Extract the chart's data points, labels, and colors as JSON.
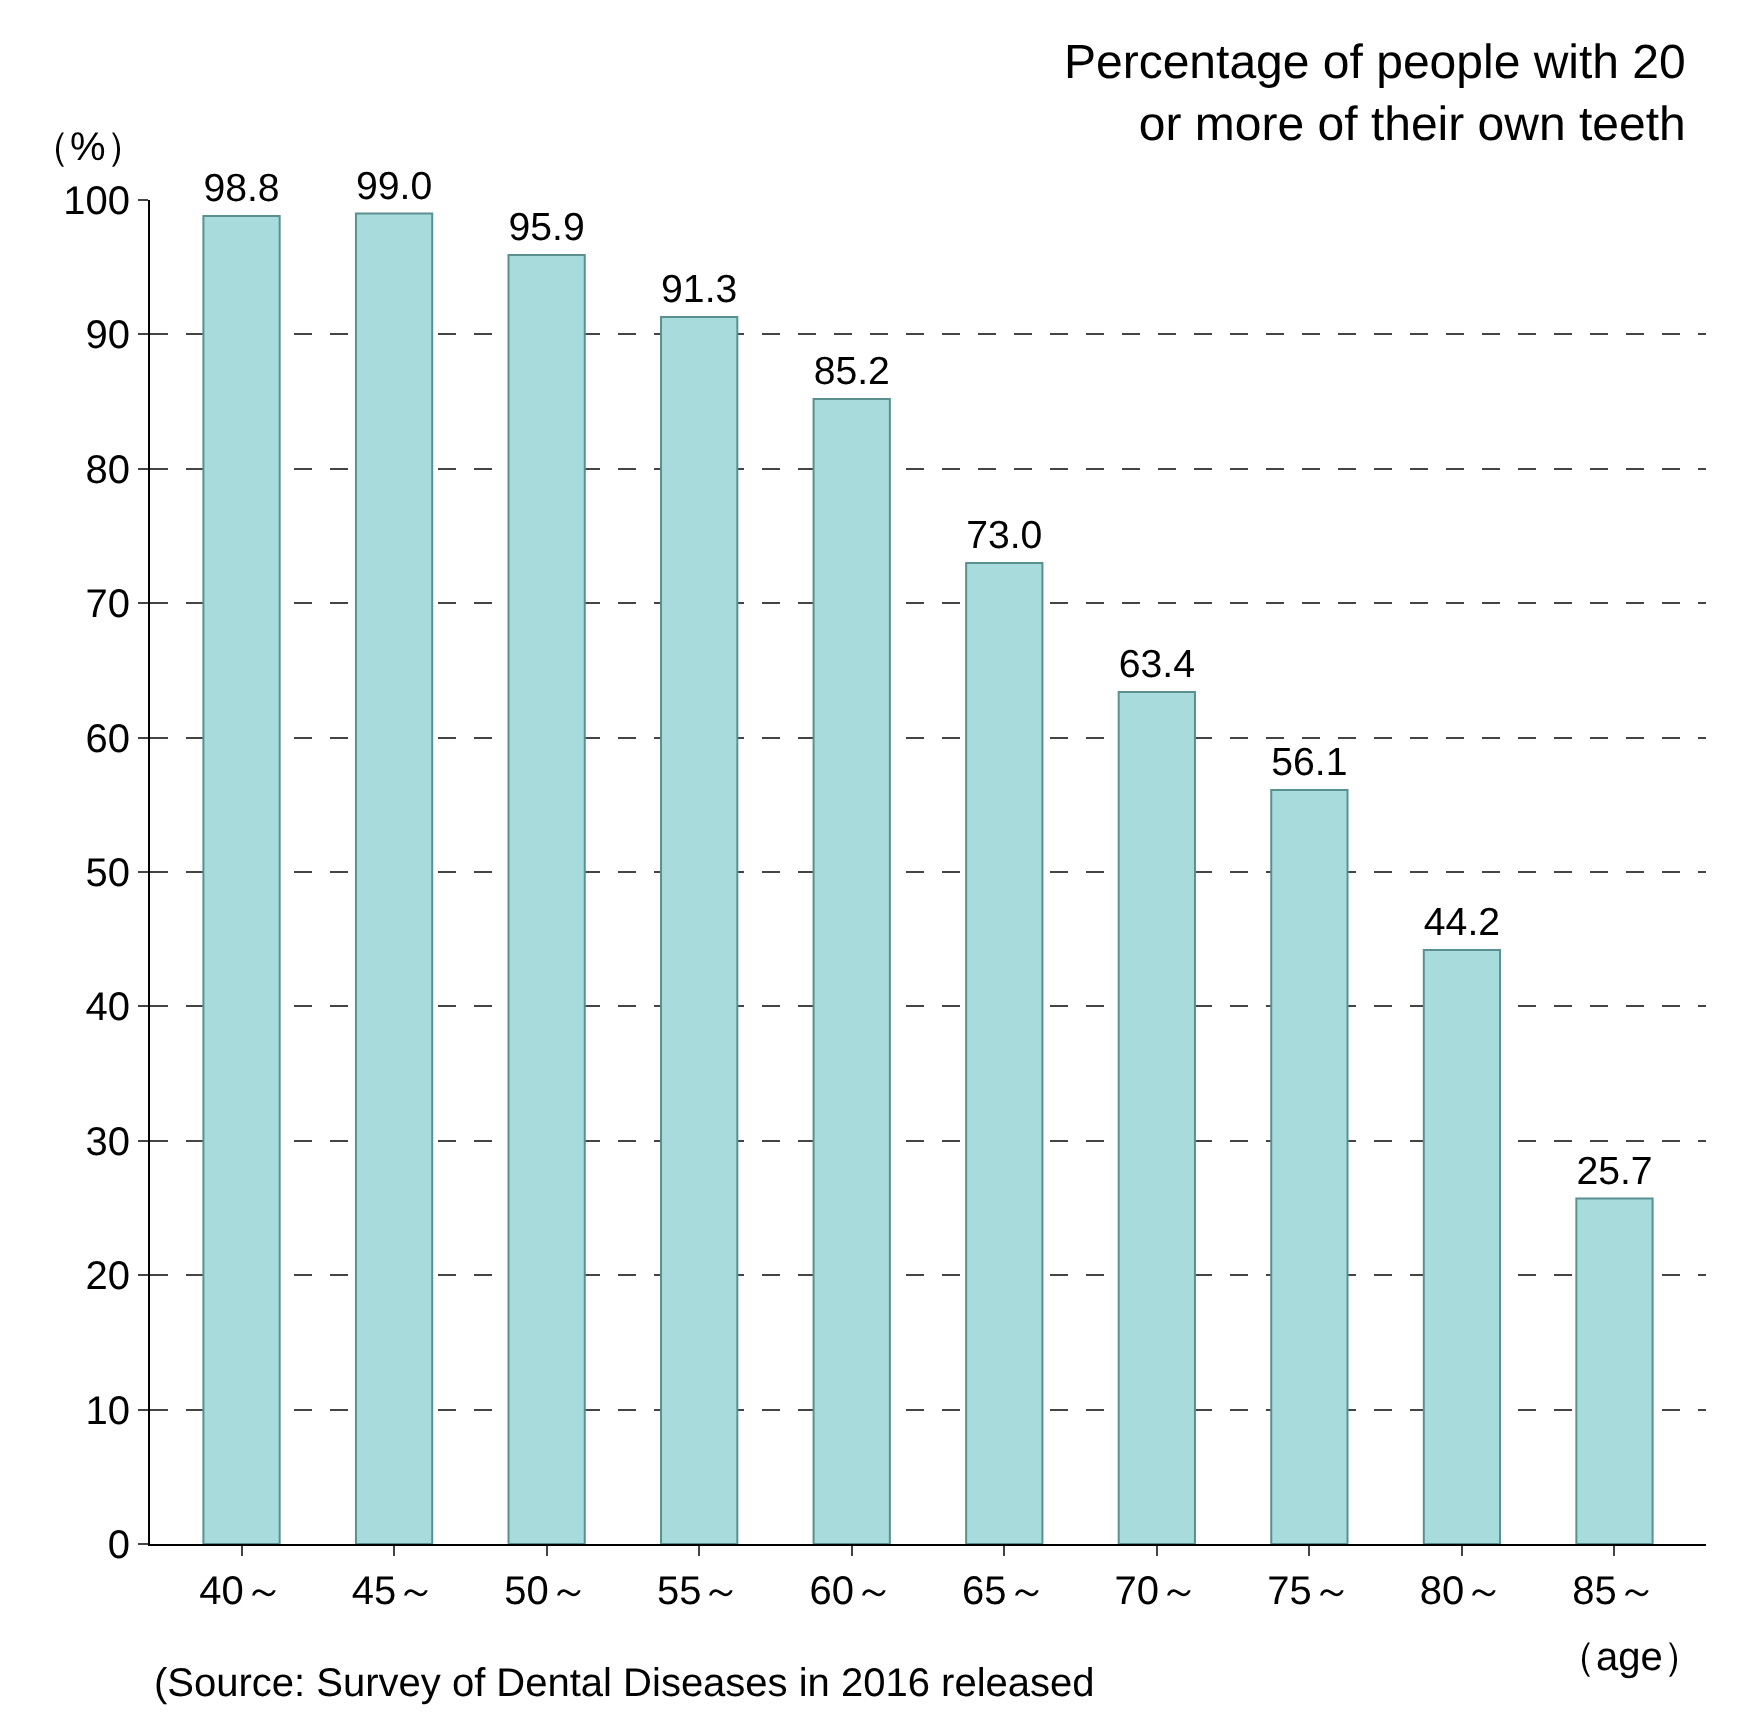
{
  "chart_data": {
    "type": "bar",
    "title": "Percentage of people with 20\nor more of their own teeth",
    "ylabel": "（%）",
    "xlabel": "（age）",
    "categories": [
      "40～",
      "45～",
      "50～",
      "55～",
      "60～",
      "65～",
      "70～",
      "75～",
      "80～",
      "85～"
    ],
    "values": [
      98.8,
      99.0,
      95.9,
      91.3,
      85.2,
      73.0,
      63.4,
      56.1,
      44.2,
      25.7
    ],
    "color": "#a8dcdc",
    "ylim": [
      0,
      100
    ],
    "yticks": [
      0,
      10,
      20,
      30,
      40,
      50,
      60,
      70,
      80,
      90,
      100
    ],
    "value_labels": [
      "98.8",
      "99.0",
      "95.9",
      "91.3",
      "85.2",
      "73.0",
      "63.4",
      "56.1",
      "44.2",
      "25.7"
    ],
    "grid": "y",
    "legend": false,
    "annotations": [
      "(Source: Survey of Dental Diseases in 2016 released"
    ]
  }
}
